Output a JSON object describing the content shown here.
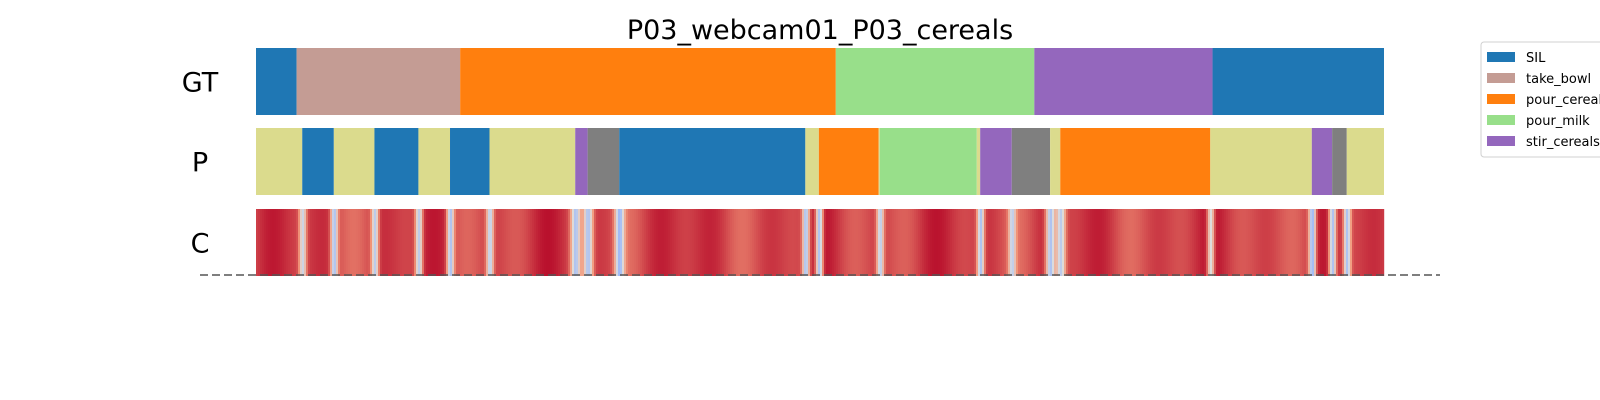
{
  "chart_data": {
    "type": "segmentation",
    "title": "P03_webcam01_P03_cereals",
    "xlim": [
      0,
      1
    ],
    "rows": [
      {
        "label": "GT",
        "segments": [
          {
            "start": 0.0,
            "end": 0.036,
            "label": "SIL"
          },
          {
            "start": 0.036,
            "end": 0.181,
            "label": "take_bowl"
          },
          {
            "start": 0.181,
            "end": 0.514,
            "label": "pour_cereals"
          },
          {
            "start": 0.514,
            "end": 0.69,
            "label": "pour_milk"
          },
          {
            "start": 0.69,
            "end": 0.848,
            "label": "stir_cereals"
          },
          {
            "start": 0.848,
            "end": 1.0,
            "label": "SIL"
          }
        ]
      },
      {
        "label": "P",
        "segments": [
          {
            "start": 0.0,
            "end": 0.041,
            "color": "#dbdb8d"
          },
          {
            "start": 0.041,
            "end": 0.069,
            "label": "SIL"
          },
          {
            "start": 0.069,
            "end": 0.105,
            "color": "#dbdb8d"
          },
          {
            "start": 0.105,
            "end": 0.144,
            "label": "SIL"
          },
          {
            "start": 0.144,
            "end": 0.172,
            "color": "#dbdb8d"
          },
          {
            "start": 0.172,
            "end": 0.207,
            "label": "SIL"
          },
          {
            "start": 0.207,
            "end": 0.283,
            "color": "#dbdb8d"
          },
          {
            "start": 0.283,
            "end": 0.294,
            "label": "stir_cereals"
          },
          {
            "start": 0.294,
            "end": 0.322,
            "color": "#7f7f7f"
          },
          {
            "start": 0.322,
            "end": 0.487,
            "label": "SIL"
          },
          {
            "start": 0.487,
            "end": 0.499,
            "color": "#dbdb8d"
          },
          {
            "start": 0.499,
            "end": 0.552,
            "label": "pour_cereals"
          },
          {
            "start": 0.552,
            "end": 0.553,
            "color": "#dbdb8d"
          },
          {
            "start": 0.553,
            "end": 0.639,
            "label": "pour_milk"
          },
          {
            "start": 0.639,
            "end": 0.642,
            "color": "#dbdb8d"
          },
          {
            "start": 0.642,
            "end": 0.67,
            "label": "stir_cereals"
          },
          {
            "start": 0.67,
            "end": 0.704,
            "color": "#7f7f7f"
          },
          {
            "start": 0.704,
            "end": 0.713,
            "color": "#dbdb8d"
          },
          {
            "start": 0.713,
            "end": 0.846,
            "label": "pour_cereals"
          },
          {
            "start": 0.846,
            "end": 0.936,
            "color": "#dbdb8d"
          },
          {
            "start": 0.936,
            "end": 0.954,
            "label": "stir_cereals"
          },
          {
            "start": 0.954,
            "end": 0.967,
            "color": "#7f7f7f"
          },
          {
            "start": 0.967,
            "end": 1.0,
            "color": "#dbdb8d"
          }
        ]
      },
      {
        "label": "C",
        "type": "heatmap",
        "base_value": 0.9,
        "dips": [
          {
            "pos": 0.041,
            "value": 0.45,
            "width": 0.003
          },
          {
            "pos": 0.069,
            "value": 0.35,
            "width": 0.003
          },
          {
            "pos": 0.105,
            "value": 0.4,
            "width": 0.003
          },
          {
            "pos": 0.144,
            "value": 0.4,
            "width": 0.003
          },
          {
            "pos": 0.172,
            "value": 0.35,
            "width": 0.003
          },
          {
            "pos": 0.207,
            "value": 0.4,
            "width": 0.003
          },
          {
            "pos": 0.283,
            "value": 0.35,
            "width": 0.004
          },
          {
            "pos": 0.294,
            "value": 0.35,
            "width": 0.004
          },
          {
            "pos": 0.322,
            "value": 0.3,
            "width": 0.004
          },
          {
            "pos": 0.487,
            "value": 0.35,
            "width": 0.003
          },
          {
            "pos": 0.499,
            "value": 0.35,
            "width": 0.003
          },
          {
            "pos": 0.553,
            "value": 0.4,
            "width": 0.003
          },
          {
            "pos": 0.642,
            "value": 0.35,
            "width": 0.003
          },
          {
            "pos": 0.67,
            "value": 0.4,
            "width": 0.003
          },
          {
            "pos": 0.704,
            "value": 0.35,
            "width": 0.004
          },
          {
            "pos": 0.713,
            "value": 0.4,
            "width": 0.004
          },
          {
            "pos": 0.846,
            "value": 0.5,
            "width": 0.003
          },
          {
            "pos": 0.936,
            "value": 0.3,
            "width": 0.003
          },
          {
            "pos": 0.954,
            "value": 0.35,
            "width": 0.003
          },
          {
            "pos": 0.967,
            "value": 0.35,
            "width": 0.003
          }
        ]
      }
    ],
    "legend": {
      "placement": "top-right",
      "entries": [
        {
          "label": "SIL",
          "color": "#1f77b4"
        },
        {
          "label": "take_bowl",
          "color": "#c49c94"
        },
        {
          "label": "pour_cereals",
          "color": "#ff7f0e"
        },
        {
          "label": "pour_milk",
          "color": "#98df8a"
        },
        {
          "label": "stir_cereals",
          "color": "#9467bd"
        }
      ]
    }
  }
}
